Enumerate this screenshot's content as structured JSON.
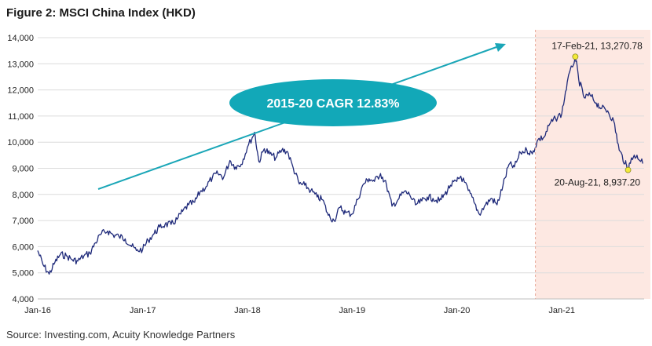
{
  "title": "Figure 2: MSCI China Index (HKD)",
  "source": "Source: Investing.com, Acuity Knowledge Partners",
  "colors": {
    "series": "#1f2a7a",
    "arrow": "#1aa6b7",
    "cagr_bubble": "#12a8b8",
    "highlight": "#fde8e2",
    "highlight_border": "#e8a898",
    "marker": "#f3ea3a",
    "grid": "#dcdcdc"
  },
  "chart_data": {
    "type": "line",
    "title": "Figure 2: MSCI China Index (HKD)",
    "xlabel": "",
    "ylabel": "",
    "ylim": [
      4000,
      14000
    ],
    "yticks": [
      4000,
      5000,
      6000,
      7000,
      8000,
      9000,
      10000,
      11000,
      12000,
      13000,
      14000
    ],
    "ytick_labels": [
      "4,000",
      "5,000",
      "6,000",
      "7,000",
      "8,000",
      "9,000",
      "10,000",
      "11,000",
      "12,000",
      "13,000",
      "14,000"
    ],
    "xlim": [
      "2016-01-01",
      "2021-10-15"
    ],
    "xtick_labels": [
      "Jan-16",
      "Jan-17",
      "Jan-18",
      "Jan-19",
      "Jan-20",
      "Jan-21"
    ],
    "xticks": [
      "2016-01-01",
      "2017-01-01",
      "2018-01-01",
      "2019-01-01",
      "2020-01-01",
      "2021-01-01"
    ],
    "grid": "horizontal",
    "highlight_region": [
      "2020-10-01",
      "2021-10-15"
    ],
    "series": [
      {
        "name": "",
        "x": [
          "2016-01-01",
          "2016-01-20",
          "2016-02-10",
          "2016-03-01",
          "2016-03-20",
          "2016-04-10",
          "2016-05-01",
          "2016-05-20",
          "2016-06-10",
          "2016-07-01",
          "2016-07-20",
          "2016-08-10",
          "2016-09-01",
          "2016-09-20",
          "2016-10-10",
          "2016-11-01",
          "2016-11-20",
          "2016-12-10",
          "2017-01-01",
          "2017-01-20",
          "2017-02-10",
          "2017-03-01",
          "2017-03-20",
          "2017-04-10",
          "2017-05-01",
          "2017-05-20",
          "2017-06-10",
          "2017-07-01",
          "2017-07-20",
          "2017-08-10",
          "2017-09-01",
          "2017-09-20",
          "2017-10-10",
          "2017-11-01",
          "2017-11-20",
          "2017-12-10",
          "2018-01-01",
          "2018-01-26",
          "2018-02-10",
          "2018-03-01",
          "2018-03-20",
          "2018-04-10",
          "2018-05-01",
          "2018-05-20",
          "2018-06-10",
          "2018-07-01",
          "2018-07-20",
          "2018-08-10",
          "2018-09-01",
          "2018-09-20",
          "2018-10-10",
          "2018-10-30",
          "2018-11-20",
          "2018-12-10",
          "2019-01-01",
          "2019-01-20",
          "2019-02-10",
          "2019-03-01",
          "2019-03-20",
          "2019-04-10",
          "2019-05-01",
          "2019-05-20",
          "2019-06-10",
          "2019-07-01",
          "2019-07-20",
          "2019-08-10",
          "2019-09-01",
          "2019-09-20",
          "2019-10-10",
          "2019-11-01",
          "2019-11-20",
          "2019-12-10",
          "2020-01-01",
          "2020-01-15",
          "2020-02-10",
          "2020-03-01",
          "2020-03-19",
          "2020-04-10",
          "2020-05-01",
          "2020-05-20",
          "2020-06-10",
          "2020-07-01",
          "2020-07-20",
          "2020-08-10",
          "2020-09-01",
          "2020-09-20",
          "2020-10-10",
          "2020-11-01",
          "2020-11-20",
          "2020-12-10",
          "2021-01-01",
          "2021-01-20",
          "2021-02-17",
          "2021-03-01",
          "2021-03-20",
          "2021-04-10",
          "2021-05-01",
          "2021-05-20",
          "2021-06-10",
          "2021-07-01",
          "2021-07-20",
          "2021-08-10",
          "2021-08-20",
          "2021-09-01",
          "2021-09-20",
          "2021-10-10"
        ],
        "values": [
          5850,
          5300,
          4950,
          5400,
          5700,
          5650,
          5500,
          5450,
          5650,
          5750,
          6150,
          6500,
          6600,
          6450,
          6400,
          6300,
          6050,
          5850,
          5900,
          6250,
          6500,
          6750,
          6850,
          6850,
          7050,
          7350,
          7600,
          7700,
          8100,
          8300,
          8650,
          8800,
          8650,
          9300,
          9050,
          9150,
          9800,
          10380,
          9250,
          9750,
          9550,
          9400,
          9700,
          9650,
          9000,
          8400,
          8350,
          8150,
          7900,
          7800,
          7200,
          7000,
          7500,
          7300,
          7250,
          7800,
          8400,
          8600,
          8500,
          8800,
          8350,
          7550,
          7800,
          8100,
          8000,
          7600,
          7750,
          7900,
          7850,
          7750,
          8000,
          8350,
          8500,
          8700,
          8150,
          7700,
          7250,
          7600,
          7850,
          7600,
          8350,
          9150,
          9050,
          9600,
          9700,
          9550,
          10100,
          10200,
          10700,
          10900,
          11100,
          12300,
          13270.78,
          12400,
          11700,
          11800,
          11500,
          11300,
          11200,
          10800,
          9700,
          9200,
          8937.2,
          9400,
          9500,
          9180
        ]
      }
    ],
    "annotations": [
      {
        "label": "17-Feb-21, 13,270.78",
        "x": "2021-02-17",
        "y": 13270.78
      },
      {
        "label": "20-Aug-21, 8,937.20",
        "x": "2021-08-20",
        "y": 8937.2
      },
      {
        "label": "2015-20 CAGR 12.83%",
        "type": "callout"
      }
    ]
  }
}
